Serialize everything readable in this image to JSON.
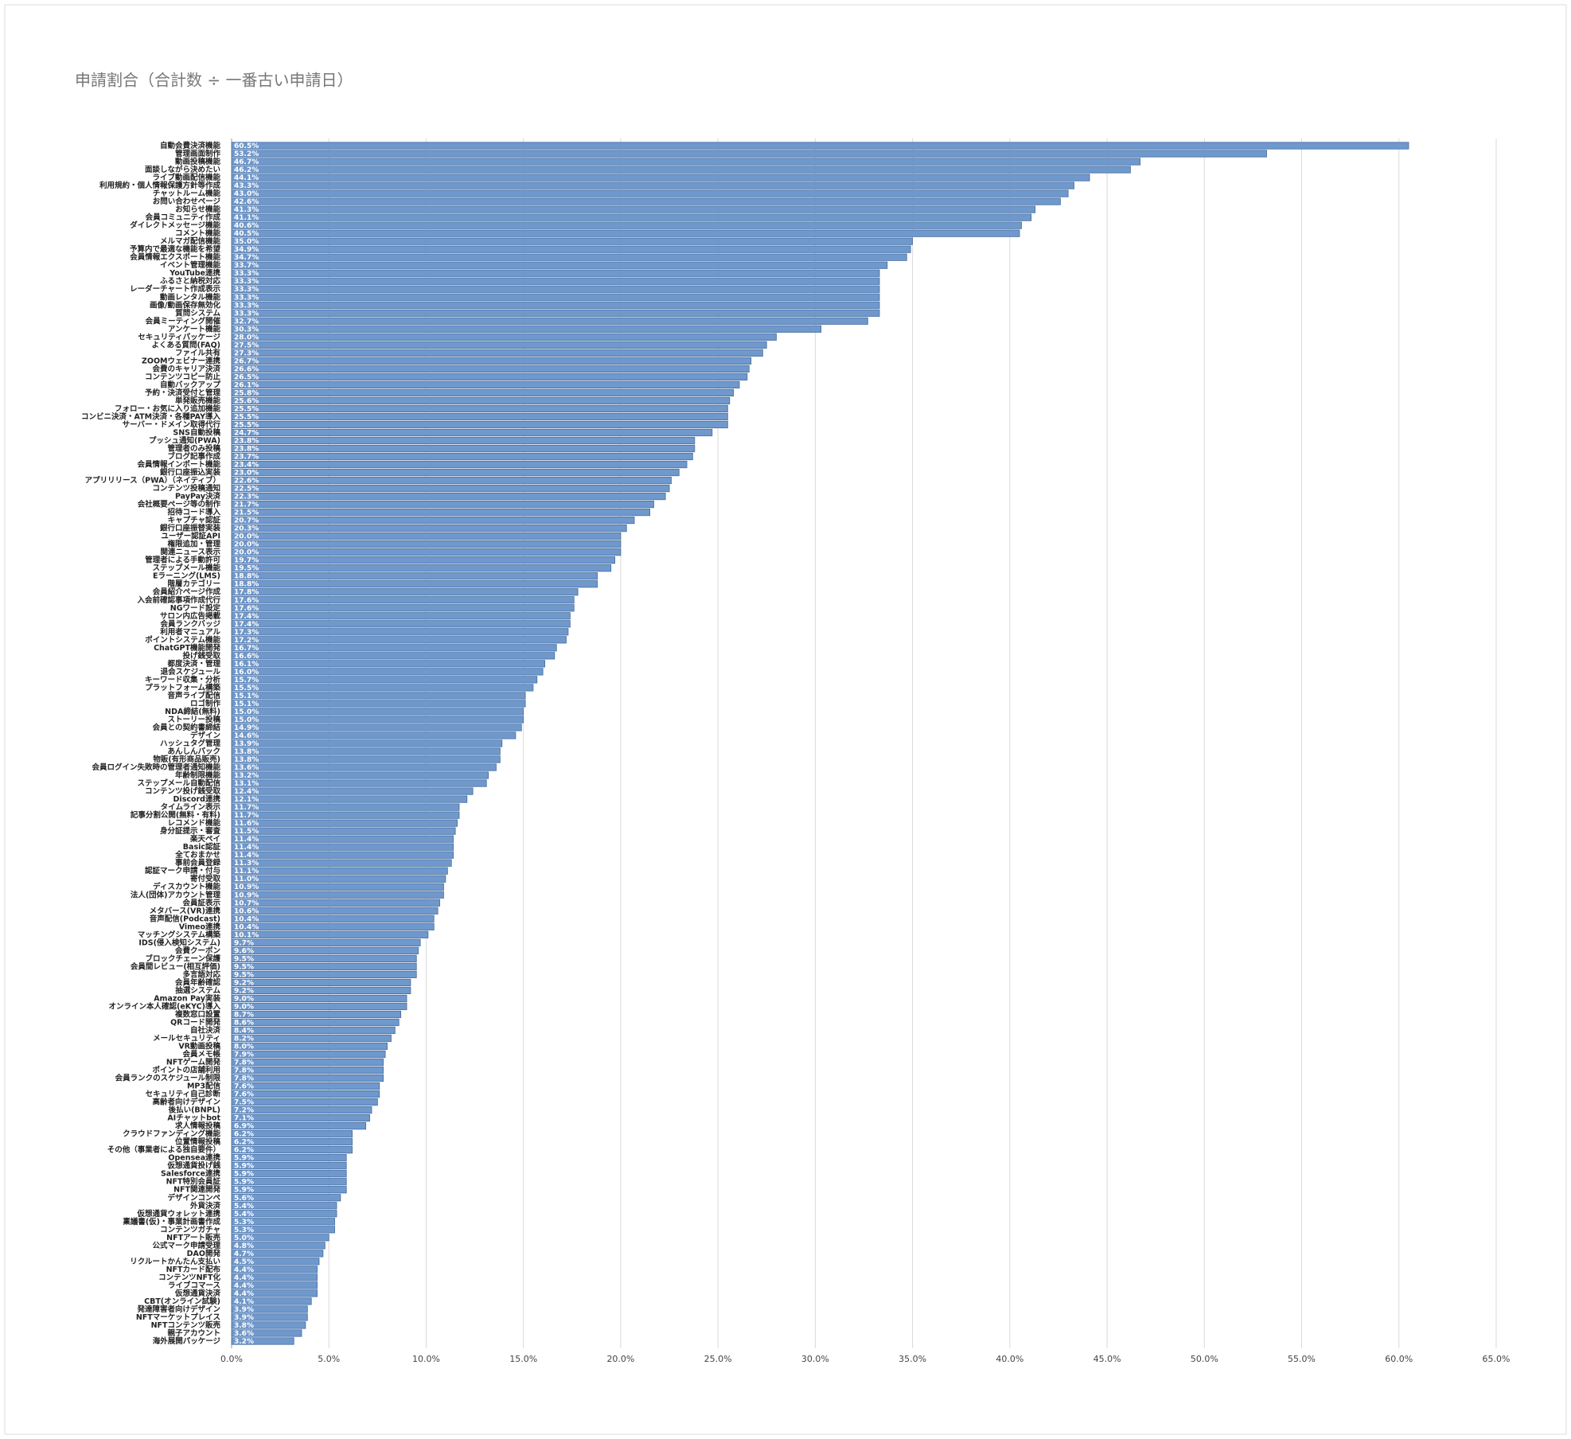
{
  "chart_data": {
    "type": "bar",
    "orientation": "horizontal",
    "title": "申請割合（合計数 ÷ 一番古い申請日）",
    "color": "#6f98cd",
    "grid": true,
    "categories": [
      "自動会費決済機能",
      "管理画面制作",
      "動画投稿機能",
      "面談しながら決めたい",
      "ライブ動画配信機能",
      "利用規約・個人情報保護方針等作成",
      "チャットルーム機能",
      "お問い合わせページ",
      "お知らせ機能",
      "会員コミュニティ作成",
      "ダイレクトメッセージ機能",
      "コメント機能",
      "メルマガ配信機能",
      "予算内で最適な機能を希望",
      "会員情報エクスポート機能",
      "イベント管理機能",
      "YouTube連携",
      "ふるさと納税対応",
      "レーダーチャート作成表示",
      "動画レンタル機能",
      "画像/動画保存無効化",
      "質問システム",
      "会員ミーティング開催",
      "アンケート機能",
      "セキュリティパッケージ",
      "よくある質問(FAQ)",
      "ファイル共有",
      "ZOOMウェビナー連携",
      "会費のキャリア決済",
      "コンテンツコピー防止",
      "自動バックアップ",
      "予約・決済受付と管理",
      "単発販売機能",
      "フォロー・お気に入り追加機能",
      "コンビニ決済・ATM決済・各種PAY導入",
      "サーバー・ドメイン取得代行",
      "SNS自動投稿",
      "プッシュ通知(PWA)",
      "管理者のみ投稿",
      "ブログ記事作成",
      "会員情報インポート機能",
      "銀行口座振込実装",
      "アプリリリース（PWA）（ネイティブ）",
      "コンテンツ投稿通知",
      "PayPay決済",
      "会社概要ページ等の制作",
      "招待コード導入",
      "キャプチャ認証",
      "銀行口座振替実装",
      "ユーザー認証API",
      "権限追加・管理",
      "関連ニュース表示",
      "管理者による手動許可",
      "ステップメール機能",
      "Eラーニング(LMS)",
      "階層カテゴリー",
      "会員紹介ページ作成",
      "入会前確認事項作成代行",
      "NGワード設定",
      "サロン内広告掲載",
      "会員ランクバッジ",
      "利用者マニュアル",
      "ポイントシステム機能",
      "ChatGPT機能開発",
      "投げ銭受取",
      "都度決済・管理",
      "退会スケジュール",
      "キーワード収集・分析",
      "プラットフォーム構築",
      "音声ライブ配信",
      "ロゴ制作",
      "NDA締結(無料)",
      "ストーリー投稿",
      "会員との契約書締結",
      "デザイン",
      "ハッシュタグ管理",
      "あんしんパック",
      "物販(有形商品販売)",
      "会員ログイン失敗時の管理者通知機能",
      "年齢制限機能",
      "ステップメール自動配信",
      "コンテンツ投げ銭受取",
      "Discord連携",
      "タイムライン表示",
      "記事分割公開(無料・有料)",
      "レコメンド機能",
      "身分証提示・審査",
      "楽天ペイ",
      "Basic認証",
      "全ておまかせ",
      "事前会員登録",
      "認証マーク申請・付与",
      "寄付受取",
      "ディスカウント機能",
      "法人(団体)アカウント管理",
      "会員証表示",
      "メタバース(VR)連携",
      "音声配信(Podcast)",
      "Vimeo連携",
      "マッチングシステム構築",
      "IDS(侵入検知システム)",
      "会費クーポン",
      "ブロックチェーン保護",
      "会員間レビュー(相互評価)",
      "多言語対応",
      "会員年齢確認",
      "抽選システム",
      "Amazon Pay実装",
      "オンライン本人確認(eKYC)導入",
      "複数窓口設置",
      "QRコード開発",
      "自社決済",
      "メールセキュリティ",
      "VR動画投稿",
      "会員メモ帳",
      "NFTゲーム開発",
      "ポイントの店舗利用",
      "会員ランクのスケジュール制限",
      "MP3配信",
      "セキュリティ自己診断",
      "高齢者向けデザイン",
      "後払い(BNPL)",
      "AIチャットbot",
      "求人情報投稿",
      "クラウドファンディング機能",
      "位置情報投稿",
      "その他（事業者による独自要件）",
      "Opensea連携",
      "仮想通貨投げ銭",
      "Salesforce連携",
      "NFT特別会員証",
      "NFT関連開発",
      "デザインコンペ",
      "外貨決済",
      "仮想通貨ウォレット連携",
      "稟議書(仮)・事業計画書作成",
      "コンテンツガチャ",
      "NFTアート販売",
      "公式マーク申請受理",
      "DAO開発",
      "リクルートかんたん支払い",
      "NFTカード配布",
      "コンテンツNFT化",
      "ライブコマース",
      "仮想通貨決済",
      "CBT(オンライン試験)",
      "発達障害者向けデザイン",
      "NFTマーケットプレイス",
      "NFTコンテンツ販売",
      "親子アカウント",
      "海外展開パッケージ"
    ],
    "values": [
      60.5,
      53.2,
      46.7,
      46.2,
      44.1,
      43.3,
      43.0,
      42.6,
      41.3,
      41.1,
      40.6,
      40.5,
      35.0,
      34.9,
      34.7,
      33.7,
      33.3,
      33.3,
      33.3,
      33.3,
      33.3,
      33.3,
      32.7,
      30.3,
      28.0,
      27.5,
      27.3,
      26.7,
      26.6,
      26.5,
      26.1,
      25.8,
      25.6,
      25.5,
      25.5,
      25.5,
      24.7,
      23.8,
      23.8,
      23.7,
      23.4,
      23.0,
      22.6,
      22.5,
      22.3,
      21.7,
      21.5,
      20.7,
      20.3,
      20.0,
      20.0,
      20.0,
      19.7,
      19.5,
      18.8,
      18.8,
      17.8,
      17.6,
      17.6,
      17.4,
      17.4,
      17.3,
      17.2,
      16.7,
      16.6,
      16.1,
      16.0,
      15.7,
      15.5,
      15.1,
      15.1,
      15.0,
      15.0,
      14.9,
      14.6,
      13.9,
      13.8,
      13.8,
      13.6,
      13.2,
      13.1,
      12.4,
      12.1,
      11.7,
      11.7,
      11.6,
      11.5,
      11.4,
      11.4,
      11.4,
      11.3,
      11.1,
      11.0,
      10.9,
      10.9,
      10.7,
      10.6,
      10.4,
      10.4,
      10.1,
      9.7,
      9.6,
      9.5,
      9.5,
      9.5,
      9.2,
      9.2,
      9.0,
      9.0,
      8.7,
      8.6,
      8.4,
      8.2,
      8.0,
      7.9,
      7.8,
      7.8,
      7.8,
      7.6,
      7.6,
      7.5,
      7.2,
      7.1,
      6.9,
      6.2,
      6.2,
      6.2,
      5.9,
      5.9,
      5.9,
      5.9,
      5.9,
      5.6,
      5.4,
      5.4,
      5.3,
      5.3,
      5.0,
      4.8,
      4.7,
      4.5,
      4.4,
      4.4,
      4.4,
      4.4,
      4.1,
      3.9,
      3.9,
      3.8,
      3.6,
      3.2
    ],
    "value_labels": [
      "60.5%",
      "53.2%",
      "46.7%",
      "46.2%",
      "44.1%",
      "43.3%",
      "43.0%",
      "42.6%",
      "41.3%",
      "41.1%",
      "40.6%",
      "40.5%",
      "35.0%",
      "34.9%",
      "34.7%",
      "33.7%",
      "33.3%",
      "33.3%",
      "33.3%",
      "33.3%",
      "33.3%",
      "33.3%",
      "32.7%",
      "30.3%",
      "28.0%",
      "27.5%",
      "27.3%",
      "26.7%",
      "26.6%",
      "26.5%",
      "26.1%",
      "25.8%",
      "25.6%",
      "25.5%",
      "25.5%",
      "25.5%",
      "24.7%",
      "23.8%",
      "23.8%",
      "23.7%",
      "23.4%",
      "23.0%",
      "22.6%",
      "22.5%",
      "22.3%",
      "21.7%",
      "21.5%",
      "20.7%",
      "20.3%",
      "20.0%",
      "20.0%",
      "20.0%",
      "19.7%",
      "19.5%",
      "18.8%",
      "18.8%",
      "17.8%",
      "17.6%",
      "17.6%",
      "17.4%",
      "17.4%",
      "17.3%",
      "17.2%",
      "16.7%",
      "16.6%",
      "16.1%",
      "16.0%",
      "15.7%",
      "15.5%",
      "15.1%",
      "15.1%",
      "15.0%",
      "15.0%",
      "14.9%",
      "14.6%",
      "13.9%",
      "13.8%",
      "13.8%",
      "13.6%",
      "13.2%",
      "13.1%",
      "12.4%",
      "12.1%",
      "11.7%",
      "11.7%",
      "11.6%",
      "11.5%",
      "11.4%",
      "11.4%",
      "11.4%",
      "11.3%",
      "11.1%",
      "11.0%",
      "10.9%",
      "10.9%",
      "10.7%",
      "10.6%",
      "10.4%",
      "10.4%",
      "10.1%",
      "9.7%",
      "9.6%",
      "9.5%",
      "9.5%",
      "9.5%",
      "9.2%",
      "9.2%",
      "9.0%",
      "9.0%",
      "8.7%",
      "8.6%",
      "8.4%",
      "8.2%",
      "8.0%",
      "7.9%",
      "7.8%",
      "7.8%",
      "7.8%",
      "7.6%",
      "7.6%",
      "7.5%",
      "7.2%",
      "7.1%",
      "6.9%",
      "6.2%",
      "6.2%",
      "6.2%",
      "5.9%",
      "5.9%",
      "5.9%",
      "5.9%",
      "5.9%",
      "5.6%",
      "5.4%",
      "5.4%",
      "5.3%",
      "5.3%",
      "5.0%",
      "4.8%",
      "4.7%",
      "4.5%",
      "4.4%",
      "4.4%",
      "4.4%",
      "4.4%",
      "4.1%",
      "3.9%",
      "3.9%",
      "3.8%",
      "3.6%",
      "3.2%"
    ],
    "xlim": [
      0,
      65
    ],
    "xticks": [
      {
        "value": 0,
        "label": "0.0%"
      },
      {
        "value": 5,
        "label": "5.0%"
      },
      {
        "value": 10,
        "label": "10.0%"
      },
      {
        "value": 15,
        "label": "15.0%"
      },
      {
        "value": 20,
        "label": "20.0%"
      },
      {
        "value": 25,
        "label": "25.0%"
      },
      {
        "value": 30,
        "label": "30.0%"
      },
      {
        "value": 35,
        "label": "35.0%"
      },
      {
        "value": 40,
        "label": "40.0%"
      },
      {
        "value": 45,
        "label": "45.0%"
      },
      {
        "value": 50,
        "label": "50.0%"
      },
      {
        "value": 55,
        "label": "55.0%"
      },
      {
        "value": 60,
        "label": "60.0%"
      },
      {
        "value": 65,
        "label": "65.0%"
      }
    ]
  }
}
